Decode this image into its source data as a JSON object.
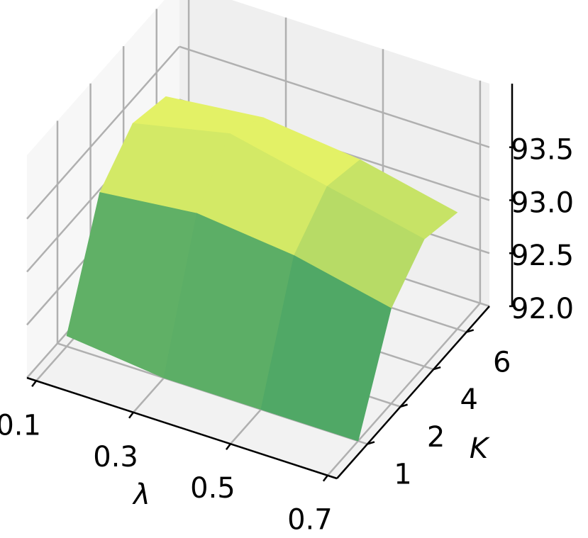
{
  "chart_data": {
    "type": "surface3d",
    "xlabel": "λ",
    "ylabel": "K",
    "xcategories": [
      0.1,
      0.3,
      0.5,
      0.7
    ],
    "ycategories": [
      1,
      2,
      4,
      6
    ],
    "z": [
      [
        92.1,
        92.0,
        92.0,
        92.0
      ],
      [
        93.1,
        93.2,
        93.1,
        92.9
      ],
      [
        93.4,
        93.6,
        93.4,
        93.2
      ],
      [
        93.3,
        93.4,
        93.3,
        93.1
      ]
    ],
    "zlim": [
      92,
      94.1
    ],
    "zticks": [
      {
        "value": 92,
        "label": "92.0"
      },
      {
        "value": 92.5,
        "label": "92.5"
      },
      {
        "value": 93,
        "label": "93.0"
      },
      {
        "value": 93.5,
        "label": "93.5"
      }
    ],
    "colormap": [
      "#008066",
      "#ffff66"
    ],
    "grid": true
  }
}
